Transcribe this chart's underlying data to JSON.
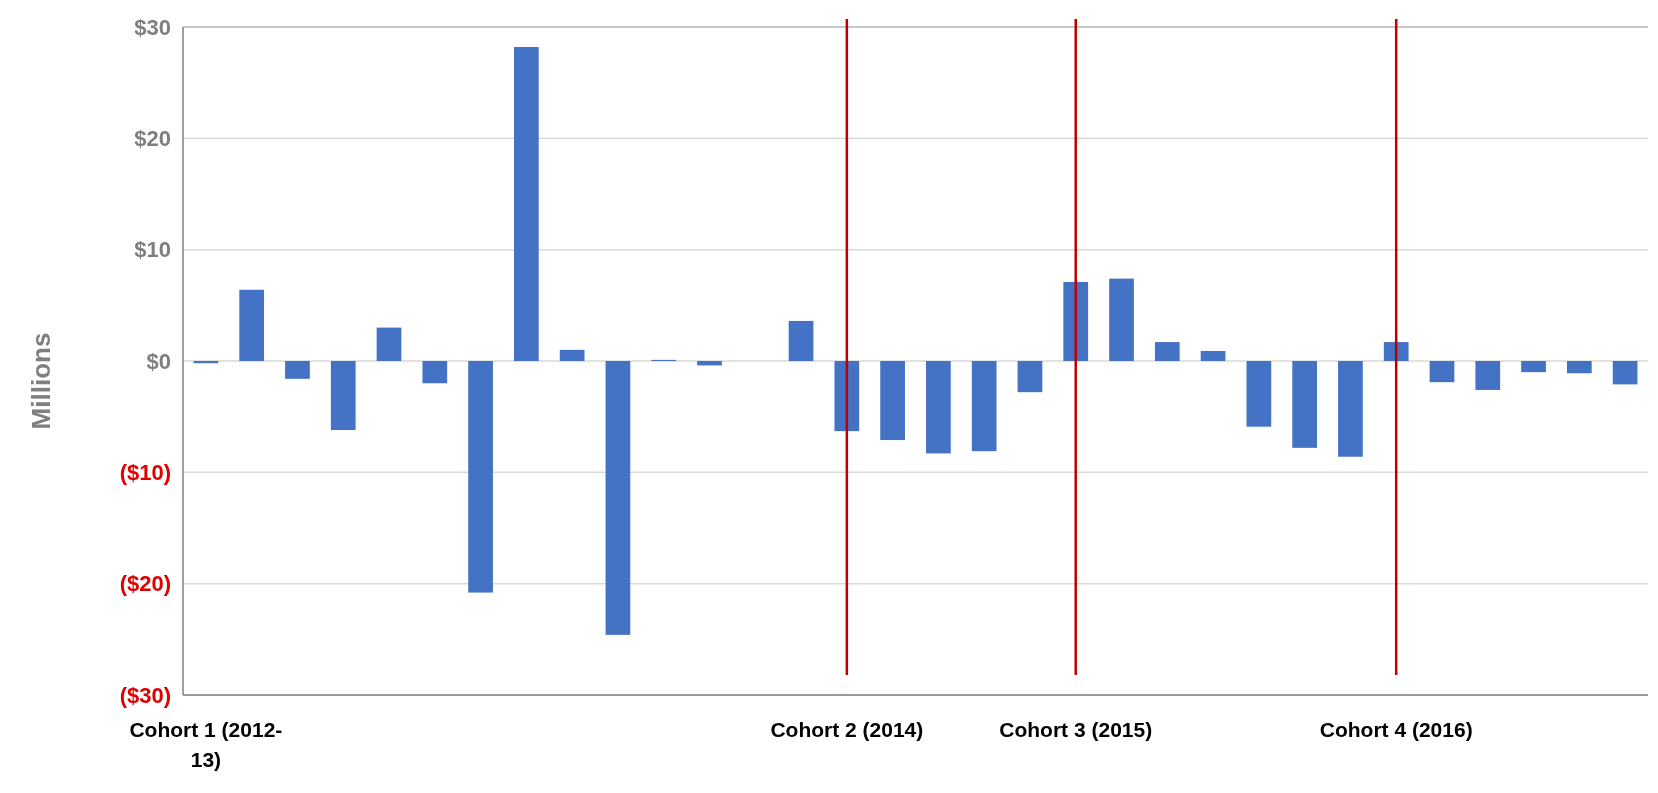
{
  "chart_data": {
    "type": "bar",
    "ylabel": "Millions",
    "categories": [
      "Cohort 1 (2012-13)",
      null,
      null,
      null,
      null,
      null,
      null,
      null,
      null,
      null,
      null,
      null,
      null,
      null,
      "Cohort 2 (2014)",
      null,
      null,
      null,
      null,
      "Cohort 3 (2015)",
      null,
      null,
      null,
      null,
      null,
      null,
      "Cohort 4 (2016)",
      null,
      null,
      null,
      null,
      null
    ],
    "values": [
      -0.2,
      6.4,
      -1.6,
      -6.2,
      3.0,
      -2.0,
      -20.8,
      28.2,
      1.0,
      -24.6,
      0.1,
      -0.4,
      0,
      3.6,
      -6.3,
      -7.1,
      -8.3,
      -8.1,
      -2.8,
      7.1,
      7.4,
      1.7,
      0.9,
      -5.9,
      -7.8,
      -8.6,
      1.7,
      -1.9,
      -2.6,
      -1.0,
      -1.1,
      -2.1
    ],
    "color": "#4472c4",
    "ylim": [
      -30,
      30
    ],
    "yticks": [
      {
        "value": 30,
        "label": "$30"
      },
      {
        "value": 20,
        "label": "$20"
      },
      {
        "value": 10,
        "label": "$10"
      },
      {
        "value": 0,
        "label": "$0"
      },
      {
        "value": -10,
        "label": "($10)"
      },
      {
        "value": -20,
        "label": "($20)"
      },
      {
        "value": -30,
        "label": "($30)"
      }
    ],
    "grid": "y",
    "ref_lines": [
      {
        "axis": "x",
        "value": "Cohort 2 (2014)",
        "color": "#c00000"
      },
      {
        "axis": "x",
        "value": "Cohort 3 (2015)",
        "color": "#c00000"
      },
      {
        "axis": "x",
        "value": "Cohort 4 (2016)",
        "color": "#c00000"
      }
    ]
  }
}
